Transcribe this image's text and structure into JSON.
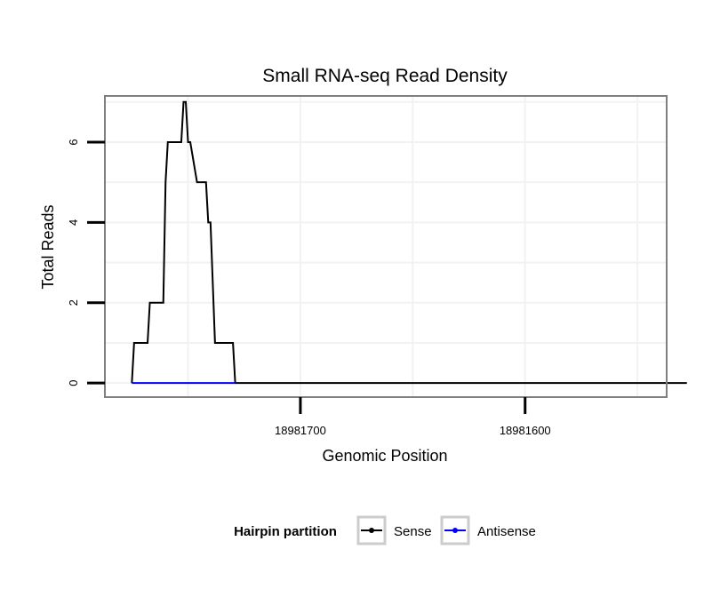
{
  "chart_data": {
    "type": "line",
    "title": "Small RNA-seq Read Density",
    "xlabel": "Genomic Position",
    "ylabel": "Total Reads",
    "x_reversed": true,
    "xlim": [
      18981787,
      18981537
    ],
    "ylim": [
      -0.35,
      7.15
    ],
    "x_ticks": [
      18981700,
      18981600
    ],
    "x_tick_labels": [
      "18981700",
      "18981600"
    ],
    "y_ticks": [
      0,
      2,
      4,
      6
    ],
    "y_tick_labels": [
      "0",
      "2",
      "4",
      "6"
    ],
    "grid": true,
    "legend": {
      "title": "Hairpin partition",
      "position": "bottom",
      "entries": [
        "Sense",
        "Antisense"
      ]
    },
    "series": [
      {
        "name": "Sense",
        "color": "#000000",
        "x": [
          18981775,
          18981774,
          18981768,
          18981767,
          18981762,
          18981761,
          18981760,
          18981759,
          18981753,
          18981752,
          18981751,
          18981750,
          18981749,
          18981746,
          18981745,
          18981742,
          18981741,
          18981740,
          18981738,
          18981737,
          18981730,
          18981729,
          18981528
        ],
        "y": [
          0,
          1,
          1,
          2,
          2,
          2,
          5,
          6,
          6,
          7,
          7,
          6,
          6,
          5,
          5,
          5,
          4,
          4,
          1,
          1,
          1,
          0,
          0
        ]
      },
      {
        "name": "Antisense",
        "color": "#0000ff",
        "x": [
          18981775,
          18981729
        ],
        "y": [
          0,
          0
        ]
      }
    ]
  }
}
